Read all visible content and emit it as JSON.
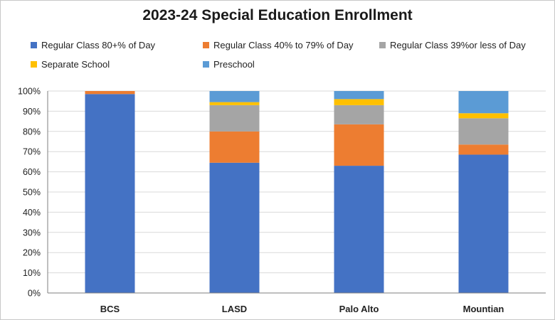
{
  "chart_data": {
    "type": "bar",
    "stacked": true,
    "title": "2023-24 Special Education Enrollment",
    "categories": [
      "BCS",
      "LASD",
      "Palo Alto",
      "Mountian"
    ],
    "series": [
      {
        "name": "Regular Class 80+% of Day",
        "color": "#4472C4",
        "values": [
          98.5,
          64.5,
          63,
          68.5
        ]
      },
      {
        "name": "Regular Class 40% to 79% of Day",
        "color": "#ED7D31",
        "values": [
          1.5,
          15.5,
          20.5,
          5
        ]
      },
      {
        "name": "Regular Class 39%or less of Day",
        "color": "#A5A5A5",
        "values": [
          0,
          13,
          9.5,
          13
        ]
      },
      {
        "name": "Separate School",
        "color": "#FFC000",
        "values": [
          0,
          1.5,
          3,
          2.5
        ]
      },
      {
        "name": "Preschool",
        "color": "#5B9BD5",
        "values": [
          0,
          5.5,
          4,
          11
        ]
      }
    ],
    "yticks": [
      "0%",
      "10%",
      "20%",
      "30%",
      "40%",
      "50%",
      "60%",
      "70%",
      "80%",
      "90%",
      "100%"
    ],
    "ylim": [
      0,
      100
    ],
    "grid": true,
    "legend_position": "top"
  }
}
